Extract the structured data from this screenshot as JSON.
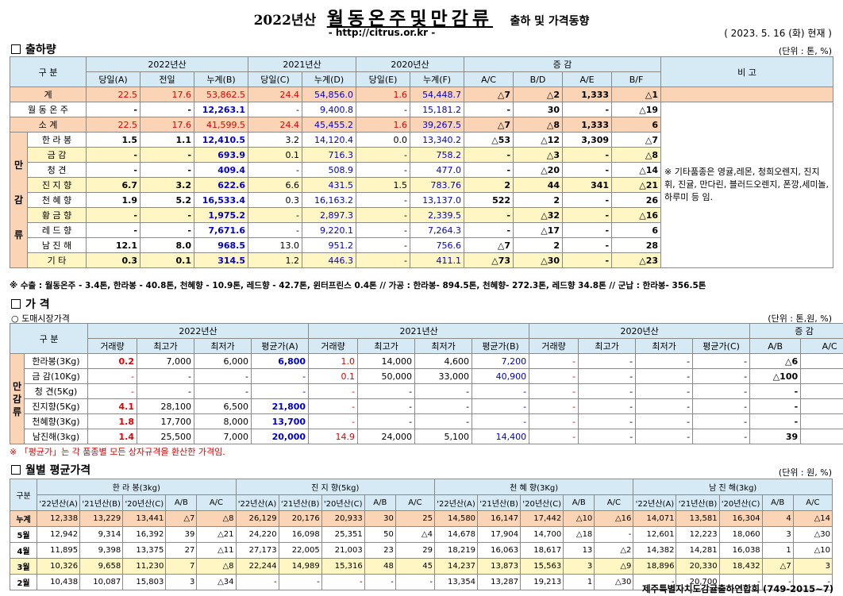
{
  "header": {
    "title_year": "2022년산",
    "title_main": "월동온주및만감류",
    "title_sub": "출하 및 가격동향",
    "url": "- http://citrus.or.kr -",
    "date": "( 2023.  5.  16 (화) 현재 )"
  },
  "shipment": {
    "section_title": "출하량",
    "unit": "(단위 : 톤, %)",
    "col_group": "구  분",
    "year_headers": [
      "2022년산",
      "2021년산",
      "2020년산",
      "증     감"
    ],
    "note_header": "비 고",
    "sub_headers": [
      "당일(A)",
      "전일",
      "누계(B)",
      "당일(C)",
      "누계(D)",
      "당일(E)",
      "누계(F)",
      "A/C",
      "B/D",
      "A/E",
      "B/F"
    ],
    "side_label": "만감류",
    "side_chars": [
      "만",
      "감",
      "류"
    ],
    "note": "※ 기타품종은 영귤,레몬, 청희오렌지, 진지휘, 진귤, 만다린, 블러드오렌지, 폰깡,세미놀, 하루미 등 임.",
    "rows": [
      {
        "label": "계",
        "v": [
          "22.5",
          "17.6",
          "53,862.5",
          "24.4",
          "54,856.0",
          "1.6",
          "54,448.7",
          "△7",
          "△2",
          "1,333",
          "△1"
        ]
      },
      {
        "label": "월 동 온 주",
        "v": [
          "-",
          "-",
          "12,263.1",
          "-",
          "9,400.8",
          "-",
          "15,181.2",
          "-",
          "30",
          "-",
          "△19"
        ]
      },
      {
        "label": "소    계",
        "v": [
          "22.5",
          "17.6",
          "41,599.5",
          "24.4",
          "45,455.2",
          "1.6",
          "39,267.5",
          "△7",
          "△8",
          "1,333",
          "6"
        ]
      },
      {
        "label": "한 라 봉",
        "v": [
          "1.5",
          "1.1",
          "12,410.5",
          "3.2",
          "14,120.4",
          "0.0",
          "13,340.2",
          "△53",
          "△12",
          "3,309",
          "△7"
        ]
      },
      {
        "label": "금    감",
        "v": [
          "-",
          "-",
          "693.9",
          "0.1",
          "716.3",
          "-",
          "758.2",
          "-",
          "△3",
          "-",
          "△8"
        ]
      },
      {
        "label": "청    견",
        "v": [
          "-",
          "-",
          "409.4",
          "-",
          "508.9",
          "-",
          "477.0",
          "-",
          "△20",
          "-",
          "△14"
        ]
      },
      {
        "label": "진 지 향",
        "v": [
          "6.7",
          "3.2",
          "622.6",
          "6.6",
          "431.5",
          "1.5",
          "783.76",
          "2",
          "44",
          "341",
          "△21"
        ]
      },
      {
        "label": "천 혜 향",
        "v": [
          "1.9",
          "5.2",
          "16,533.4",
          "0.3",
          "16,163.2",
          "-",
          "13,137.0",
          "522",
          "2",
          "-",
          "26"
        ]
      },
      {
        "label": "황 금 향",
        "v": [
          "-",
          "-",
          "1,975.2",
          "-",
          "2,897.3",
          "-",
          "2,339.5",
          "-",
          "△32",
          "-",
          "△16"
        ]
      },
      {
        "label": "레 드 향",
        "v": [
          "-",
          "-",
          "7,671.6",
          "-",
          "9,220.1",
          "-",
          "7,264.3",
          "-",
          "△17",
          "-",
          "6"
        ]
      },
      {
        "label": "남 진 해",
        "v": [
          "12.1",
          "8.0",
          "968.5",
          "13.0",
          "951.2",
          "-",
          "756.6",
          "△7",
          "2",
          "-",
          "28"
        ]
      },
      {
        "label": "기    타",
        "v": [
          "0.3",
          "0.1",
          "314.5",
          "1.2",
          "446.3",
          "-",
          "411.1",
          "△73",
          "△30",
          "-",
          "△23"
        ]
      }
    ],
    "footnote": "※ 수출 : 월동온주 - 3.4톤, 한라봉 - 40.8톤, 천혜향 - 10.9톤, 레드향 - 42.7톤, 윈터프린스 0.4톤 //  가공  :  한라봉- 894.5톤, 천혜향- 272.3톤, 레드향 34.8톤  //  군납 : 한라봉- 356.5톤"
  },
  "price": {
    "section_title": "가   격",
    "subtitle": "○ 도매시장가격",
    "unit": "(단위 : 톤,원, %)",
    "col_group": "구   분",
    "year_headers": [
      "2022년산",
      "2021년산",
      "2020년산",
      "증   감"
    ],
    "sub_headers": [
      "거래량",
      "최고가",
      "최저가",
      "평균가(A)",
      "거래량",
      "최고가",
      "최저가",
      "평균가(B)",
      "거래량",
      "최고가",
      "최저가",
      "평균가(C)",
      "A/B",
      "A/C"
    ],
    "side_chars": [
      "만",
      "감",
      "류"
    ],
    "rows": [
      {
        "label": "한라봉(3Kg)",
        "v": [
          "0.2",
          "7,000",
          "6,000",
          "6,800",
          "1.0",
          "14,000",
          "4,600",
          "7,200",
          "-",
          "-",
          "-",
          "-",
          "△6",
          "-"
        ]
      },
      {
        "label": "금  감(10Kg)",
        "v": [
          "-",
          "-",
          "-",
          "-",
          "0.1",
          "50,000",
          "33,000",
          "40,900",
          "-",
          "-",
          "-",
          "-",
          "△100",
          "-"
        ]
      },
      {
        "label": "청  견(5Kg)",
        "v": [
          "-",
          "-",
          "-",
          "-",
          "-",
          "-",
          "-",
          "-",
          "-",
          "-",
          "-",
          "-",
          "-",
          "-"
        ]
      },
      {
        "label": "진지향(5Kg)",
        "v": [
          "4.1",
          "28,100",
          "6,500",
          "21,800",
          "-",
          "-",
          "-",
          "-",
          "-",
          "-",
          "-",
          "-",
          "-",
          "-"
        ]
      },
      {
        "label": "천혜향(3Kg)",
        "v": [
          "1.8",
          "17,700",
          "8,000",
          "13,700",
          "-",
          "-",
          "-",
          "-",
          "-",
          "-",
          "-",
          "-",
          "-",
          "-"
        ]
      },
      {
        "label": "남진해(3kg)",
        "v": [
          "1.4",
          "25,500",
          "7,000",
          "20,000",
          "14.9",
          "24,000",
          "5,100",
          "14,400",
          "-",
          "-",
          "-",
          "-",
          "39",
          "-"
        ]
      }
    ],
    "footnote": "※ 「평균가」는 각 품종별 모든 상자규격을 환산한 가격임."
  },
  "monthly": {
    "section_title": "월별 평균가격",
    "unit": "(단위 : 원, %)",
    "col_group": "구분",
    "group_headers": [
      "한 라 봉(3kg)",
      "진 지 향(5kg)",
      "천 혜 향(3Kg)",
      "남 진 해(3kg)"
    ],
    "sub_headers": [
      "'22년산(A)",
      "'21년산(B)",
      "'20년산(C)",
      "A/B",
      "A/C"
    ],
    "rows": [
      {
        "label": "누계",
        "v": [
          "12,338",
          "13,229",
          "13,441",
          "△7",
          "△8",
          "26,129",
          "20,176",
          "20,933",
          "30",
          "25",
          "14,580",
          "16,147",
          "17,442",
          "△10",
          "△16",
          "14,071",
          "13,581",
          "16,304",
          "4",
          "△14"
        ]
      },
      {
        "label": "5월",
        "v": [
          "12,942",
          "9,314",
          "16,392",
          "39",
          "△21",
          "24,220",
          "16,098",
          "25,351",
          "50",
          "△4",
          "14,678",
          "17,904",
          "14,700",
          "△18",
          "-",
          "12,601",
          "12,223",
          "18,060",
          "3",
          "△30"
        ]
      },
      {
        "label": "4월",
        "v": [
          "11,895",
          "9,398",
          "13,375",
          "27",
          "△11",
          "27,173",
          "22,005",
          "21,003",
          "23",
          "29",
          "18,219",
          "16,063",
          "18,617",
          "13",
          "△2",
          "14,382",
          "14,281",
          "16,038",
          "1",
          "△10"
        ]
      },
      {
        "label": "3월",
        "v": [
          "10,326",
          "9,658",
          "11,230",
          "7",
          "△8",
          "22,244",
          "14,989",
          "15,316",
          "48",
          "45",
          "14,237",
          "13,873",
          "15,563",
          "3",
          "△9",
          "18,896",
          "20,330",
          "18,432",
          "△7",
          "3"
        ]
      },
      {
        "label": "2월",
        "v": [
          "10,438",
          "10,087",
          "15,803",
          "3",
          "△34",
          "-",
          "-",
          "-",
          "-",
          "-",
          "13,354",
          "13,287",
          "19,213",
          "1",
          "△30",
          "-",
          "20,700",
          "-",
          "-",
          "-"
        ]
      }
    ]
  },
  "footer": "제주특별자치도감귤출하연합회 (749-2015~7)"
}
